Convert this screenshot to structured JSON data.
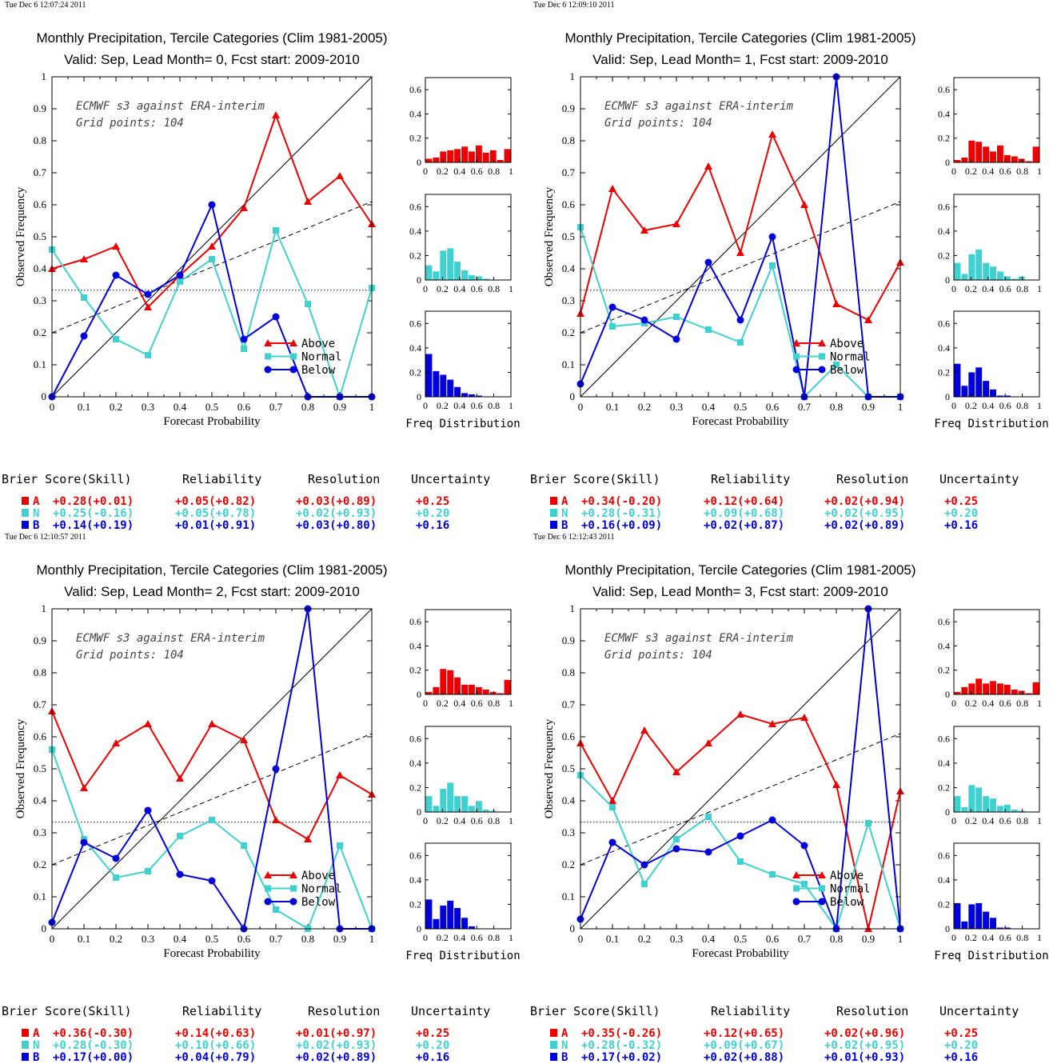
{
  "colors": {
    "above": "#ee0000",
    "normal": "#40d0d0",
    "below": "#0000dd",
    "axis": "#000000"
  },
  "common": {
    "xlabel": "Forecast Probability",
    "ylabel": "Observed Frequency",
    "annot_line1": "ECMWF s3 against ERA-interim",
    "annot_line2": "Grid points:  104",
    "freq_label": "Freq Distribution",
    "legend": [
      "Above",
      "Normal",
      "Below"
    ],
    "score_headers": [
      "Brier Score(Skill)",
      "Reliability",
      "Resolution",
      "Uncertainty"
    ],
    "x_ticks": [
      "0",
      "0.1",
      "0.2",
      "0.3",
      "0.4",
      "0.5",
      "0.6",
      "0.7",
      "0.8",
      "0.9",
      "1"
    ],
    "y_ticks": [
      "0",
      "0.1",
      "0.2",
      "0.3",
      "0.4",
      "0.5",
      "0.6",
      "0.7",
      "0.8",
      "0.9",
      "1"
    ],
    "hist_y_ticks": [
      "0",
      "0.2",
      "0.4",
      "0.6"
    ],
    "hist_x_ticks": [
      "0",
      "0.2",
      "0.4",
      "0.6",
      "0.8",
      "1"
    ]
  },
  "chart_data": [
    {
      "type": "line",
      "timestamp": "Tue Dec  6 12:07:24 2011",
      "title": "Monthly Precipitation, Tercile Categories (Clim 1981-2005)",
      "subtitle": "Valid: Sep, Lead Month= 0, Fcst start: 2009-2010",
      "xlabel": "Forecast Probability",
      "ylabel": "Observed Frequency",
      "xlim": [
        0,
        1
      ],
      "ylim": [
        0,
        1
      ],
      "x": [
        0,
        0.1,
        0.2,
        0.3,
        0.4,
        0.5,
        0.6,
        0.7,
        0.8,
        0.9,
        1.0
      ],
      "series": [
        {
          "name": "Above",
          "values": [
            0.4,
            0.43,
            0.47,
            0.28,
            0.38,
            0.47,
            0.59,
            0.88,
            0.61,
            0.69,
            0.54
          ]
        },
        {
          "name": "Normal",
          "values": [
            0.46,
            0.31,
            0.18,
            0.13,
            0.36,
            0.43,
            0.15,
            0.52,
            0.29,
            0.0,
            0.34
          ]
        },
        {
          "name": "Below",
          "values": [
            0.0,
            0.19,
            0.38,
            0.32,
            0.38,
            0.6,
            0.18,
            0.25,
            0.0,
            0.0,
            0.0
          ]
        }
      ],
      "reference_lines": {
        "clim": 0.333,
        "no_skill_at_0": 0.2,
        "no_skill_at_1": 0.61
      },
      "histograms": {
        "Above": [
          0.03,
          0.04,
          0.09,
          0.1,
          0.11,
          0.13,
          0.09,
          0.14,
          0.08,
          0.1,
          0.02,
          0.11
        ],
        "Normal": [
          0.12,
          0.07,
          0.24,
          0.26,
          0.15,
          0.08,
          0.04,
          0.03,
          0.01,
          0.0,
          0.0,
          0.0
        ],
        "Below": [
          0.35,
          0.21,
          0.18,
          0.14,
          0.08,
          0.03,
          0.02,
          0.01,
          0.0,
          0.0,
          0.0,
          0.0
        ]
      },
      "scores": [
        {
          "cat": "A",
          "brier": "+0.28(+0.01)",
          "rel": "+0.05(+0.82)",
          "res": "+0.03(+0.89)",
          "unc": "+0.25"
        },
        {
          "cat": "N",
          "brier": "+0.25(-0.16)",
          "rel": "+0.05(+0.78)",
          "res": "+0.02(+0.93)",
          "unc": "+0.20"
        },
        {
          "cat": "B",
          "brier": "+0.14(+0.19)",
          "rel": "+0.01(+0.91)",
          "res": "+0.03(+0.80)",
          "unc": "+0.16"
        }
      ]
    },
    {
      "type": "line",
      "timestamp": "Tue Dec  6 12:09:10 2011",
      "title": "Monthly Precipitation, Tercile Categories (Clim 1981-2005)",
      "subtitle": "Valid: Sep, Lead Month= 1, Fcst start: 2009-2010",
      "xlabel": "Forecast Probability",
      "ylabel": "Observed Frequency",
      "xlim": [
        0,
        1
      ],
      "ylim": [
        0,
        1
      ],
      "x": [
        0,
        0.1,
        0.2,
        0.3,
        0.4,
        0.5,
        0.6,
        0.7,
        0.8,
        0.9,
        1.0
      ],
      "series": [
        {
          "name": "Above",
          "values": [
            0.26,
            0.65,
            0.52,
            0.54,
            0.72,
            0.45,
            0.82,
            0.6,
            0.29,
            0.24,
            0.42
          ]
        },
        {
          "name": "Normal",
          "values": [
            0.53,
            0.22,
            0.23,
            0.25,
            0.21,
            0.17,
            0.41,
            0.0,
            0.1,
            0.0,
            0.0
          ]
        },
        {
          "name": "Below",
          "values": [
            0.04,
            0.28,
            0.24,
            0.18,
            0.42,
            0.24,
            0.5,
            0.0,
            1.0,
            0.0,
            0.0
          ]
        }
      ],
      "reference_lines": {
        "clim": 0.333,
        "no_skill_at_0": 0.2,
        "no_skill_at_1": 0.61
      },
      "histograms": {
        "Above": [
          0.02,
          0.04,
          0.18,
          0.17,
          0.13,
          0.09,
          0.14,
          0.06,
          0.05,
          0.03,
          0.01,
          0.13
        ],
        "Normal": [
          0.14,
          0.05,
          0.21,
          0.25,
          0.14,
          0.11,
          0.07,
          0.03,
          0.01,
          0.03,
          0.0,
          0.0
        ],
        "Below": [
          0.27,
          0.09,
          0.2,
          0.24,
          0.13,
          0.06,
          0.01,
          0.01,
          0.0,
          0.0,
          0.0,
          0.0
        ]
      },
      "scores": [
        {
          "cat": "A",
          "brier": "+0.34(-0.20)",
          "rel": "+0.12(+0.64)",
          "res": "+0.02(+0.94)",
          "unc": "+0.25"
        },
        {
          "cat": "N",
          "brier": "+0.28(-0.31)",
          "rel": "+0.09(+0.68)",
          "res": "+0.02(+0.95)",
          "unc": "+0.20"
        },
        {
          "cat": "B",
          "brier": "+0.16(+0.09)",
          "rel": "+0.02(+0.87)",
          "res": "+0.02(+0.89)",
          "unc": "+0.16"
        }
      ]
    },
    {
      "type": "line",
      "timestamp": "Tue Dec  6 12:10:57 2011",
      "title": "Monthly Precipitation, Tercile Categories (Clim 1981-2005)",
      "subtitle": "Valid: Sep, Lead Month= 2, Fcst start: 2009-2010",
      "xlabel": "Forecast Probability",
      "ylabel": "Observed Frequency",
      "xlim": [
        0,
        1
      ],
      "ylim": [
        0,
        1
      ],
      "x": [
        0,
        0.1,
        0.2,
        0.3,
        0.4,
        0.5,
        0.6,
        0.7,
        0.8,
        0.9,
        1.0
      ],
      "series": [
        {
          "name": "Above",
          "values": [
            0.68,
            0.44,
            0.58,
            0.64,
            0.47,
            0.64,
            0.59,
            0.34,
            0.28,
            0.48,
            0.42
          ]
        },
        {
          "name": "Normal",
          "values": [
            0.56,
            0.28,
            0.16,
            0.18,
            0.29,
            0.34,
            0.26,
            0.06,
            0.0,
            0.26,
            0.0
          ]
        },
        {
          "name": "Below",
          "values": [
            0.02,
            0.27,
            0.22,
            0.37,
            0.17,
            0.15,
            0.0,
            0.5,
            1.0,
            0.0,
            0.0
          ]
        }
      ],
      "reference_lines": {
        "clim": 0.333,
        "no_skill_at_0": 0.2,
        "no_skill_at_1": 0.61
      },
      "histograms": {
        "Above": [
          0.02,
          0.06,
          0.21,
          0.2,
          0.14,
          0.08,
          0.08,
          0.06,
          0.04,
          0.02,
          0.01,
          0.12
        ],
        "Normal": [
          0.13,
          0.05,
          0.19,
          0.24,
          0.13,
          0.13,
          0.05,
          0.09,
          0.02,
          0.01,
          0.0,
          0.0
        ],
        "Below": [
          0.24,
          0.08,
          0.19,
          0.23,
          0.17,
          0.09,
          0.02,
          0.0,
          0.0,
          0.0,
          0.0,
          0.0
        ]
      },
      "scores": [
        {
          "cat": "A",
          "brier": "+0.36(-0.30)",
          "rel": "+0.14(+0.63)",
          "res": "+0.01(+0.97)",
          "unc": "+0.25"
        },
        {
          "cat": "N",
          "brier": "+0.28(-0.30)",
          "rel": "+0.10(+0.66)",
          "res": "+0.02(+0.93)",
          "unc": "+0.20"
        },
        {
          "cat": "B",
          "brier": "+0.17(+0.00)",
          "rel": "+0.04(+0.79)",
          "res": "+0.02(+0.89)",
          "unc": "+0.16"
        }
      ]
    },
    {
      "type": "line",
      "timestamp": "Tue Dec  6 12:12:43 2011",
      "title": "Monthly Precipitation, Tercile Categories (Clim 1981-2005)",
      "subtitle": "Valid: Sep, Lead Month= 3, Fcst start: 2009-2010",
      "xlabel": "Forecast Probability",
      "ylabel": "Observed Frequency",
      "xlim": [
        0,
        1
      ],
      "ylim": [
        0,
        1
      ],
      "x": [
        0,
        0.1,
        0.2,
        0.3,
        0.4,
        0.5,
        0.6,
        0.7,
        0.8,
        0.9,
        1.0
      ],
      "series": [
        {
          "name": "Above",
          "values": [
            0.58,
            0.4,
            0.62,
            0.49,
            0.58,
            0.67,
            0.64,
            0.66,
            0.45,
            0.0,
            0.43
          ]
        },
        {
          "name": "Normal",
          "values": [
            0.48,
            0.38,
            0.14,
            0.28,
            0.35,
            0.21,
            0.17,
            0.14,
            0.0,
            0.33,
            0.0
          ]
        },
        {
          "name": "Below",
          "values": [
            0.03,
            0.27,
            0.2,
            0.25,
            0.24,
            0.29,
            0.34,
            0.26,
            0.0,
            1.0,
            0.0
          ]
        }
      ],
      "reference_lines": {
        "clim": 0.333,
        "no_skill_at_0": 0.2,
        "no_skill_at_1": 0.61
      },
      "histograms": {
        "Above": [
          0.02,
          0.06,
          0.09,
          0.13,
          0.09,
          0.11,
          0.09,
          0.08,
          0.04,
          0.03,
          0.01,
          0.1
        ],
        "Normal": [
          0.13,
          0.04,
          0.22,
          0.2,
          0.13,
          0.11,
          0.05,
          0.06,
          0.02,
          0.01,
          0.0,
          0.0
        ],
        "Below": [
          0.21,
          0.06,
          0.2,
          0.21,
          0.14,
          0.09,
          0.01,
          0.01,
          0.0,
          0.0,
          0.0,
          0.0
        ]
      },
      "scores": [
        {
          "cat": "A",
          "brier": "+0.35(-0.26)",
          "rel": "+0.12(+0.65)",
          "res": "+0.02(+0.96)",
          "unc": "+0.25"
        },
        {
          "cat": "N",
          "brier": "+0.28(-0.32)",
          "rel": "+0.09(+0.67)",
          "res": "+0.02(+0.95)",
          "unc": "+0.20"
        },
        {
          "cat": "B",
          "brier": "+0.17(+0.02)",
          "rel": "+0.02(+0.88)",
          "res": "+0.01(+0.93)",
          "unc": "+0.16"
        }
      ]
    }
  ]
}
